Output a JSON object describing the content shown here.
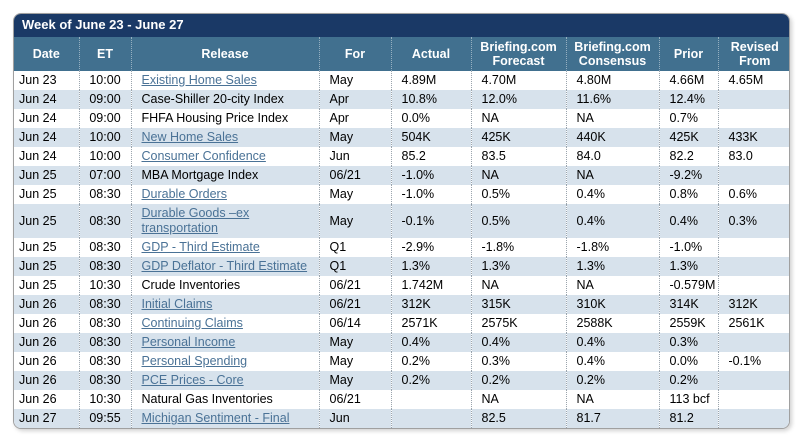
{
  "widget": {
    "title": "Week of June 23 - June 27",
    "colors": {
      "title_bar_bg": "#1a3966",
      "header_bg": "#41708f",
      "alt_row_bg": "#d7e2ec",
      "link_color": "#4a7296"
    }
  },
  "table": {
    "columns": [
      "Date",
      "ET",
      "Release",
      "For",
      "Actual",
      "Briefing.com Forecast",
      "Briefing.com Consensus",
      "Prior",
      "Revised From"
    ],
    "rows": [
      {
        "date": "Jun 23",
        "et": "10:00",
        "release": "Existing Home Sales",
        "link": true,
        "for": "May",
        "actual": "4.89M",
        "forecast": "4.70M",
        "consensus": "4.80M",
        "prior": "4.66M",
        "revised": "4.65M"
      },
      {
        "date": "Jun 24",
        "et": "09:00",
        "release": "Case-Shiller 20-city Index",
        "link": false,
        "for": "Apr",
        "actual": "10.8%",
        "forecast": "12.0%",
        "consensus": "11.6%",
        "prior": "12.4%",
        "revised": ""
      },
      {
        "date": "Jun 24",
        "et": "09:00",
        "release": "FHFA Housing Price Index",
        "link": false,
        "for": "Apr",
        "actual": "0.0%",
        "forecast": "NA",
        "consensus": "NA",
        "prior": "0.7%",
        "revised": ""
      },
      {
        "date": "Jun 24",
        "et": "10:00",
        "release": "New Home Sales",
        "link": true,
        "for": "May",
        "actual": "504K",
        "forecast": "425K",
        "consensus": "440K",
        "prior": "425K",
        "revised": "433K"
      },
      {
        "date": "Jun 24",
        "et": "10:00",
        "release": "Consumer Confidence",
        "link": true,
        "for": "Jun",
        "actual": "85.2",
        "forecast": "83.5",
        "consensus": "84.0",
        "prior": "82.2",
        "revised": "83.0"
      },
      {
        "date": "Jun 25",
        "et": "07:00",
        "release": "MBA Mortgage Index",
        "link": false,
        "for": "06/21",
        "actual": "-1.0%",
        "forecast": "NA",
        "consensus": "NA",
        "prior": "-9.2%",
        "revised": ""
      },
      {
        "date": "Jun 25",
        "et": "08:30",
        "release": "Durable Orders",
        "link": true,
        "for": "May",
        "actual": "-1.0%",
        "forecast": "0.5%",
        "consensus": "0.4%",
        "prior": "0.8%",
        "revised": "0.6%"
      },
      {
        "date": "Jun 25",
        "et": "08:30",
        "release": "Durable Goods –ex transportation",
        "link": true,
        "for": "May",
        "actual": "-0.1%",
        "forecast": "0.5%",
        "consensus": "0.4%",
        "prior": "0.4%",
        "revised": "0.3%"
      },
      {
        "date": "Jun 25",
        "et": "08:30",
        "release": "GDP - Third Estimate",
        "link": true,
        "for": "Q1",
        "actual": "-2.9%",
        "forecast": "-1.8%",
        "consensus": "-1.8%",
        "prior": "-1.0%",
        "revised": ""
      },
      {
        "date": "Jun 25",
        "et": "08:30",
        "release": "GDP Deflator - Third Estimate",
        "link": true,
        "for": "Q1",
        "actual": "1.3%",
        "forecast": "1.3%",
        "consensus": "1.3%",
        "prior": "1.3%",
        "revised": ""
      },
      {
        "date": "Jun 25",
        "et": "10:30",
        "release": "Crude Inventories",
        "link": false,
        "for": "06/21",
        "actual": "1.742M",
        "forecast": "NA",
        "consensus": "NA",
        "prior": "-0.579M",
        "revised": ""
      },
      {
        "date": "Jun 26",
        "et": "08:30",
        "release": "Initial Claims",
        "link": true,
        "for": "06/21",
        "actual": "312K",
        "forecast": "315K",
        "consensus": "310K",
        "prior": "314K",
        "revised": "312K"
      },
      {
        "date": "Jun 26",
        "et": "08:30",
        "release": "Continuing Claims",
        "link": true,
        "for": "06/14",
        "actual": "2571K",
        "forecast": "2575K",
        "consensus": "2588K",
        "prior": "2559K",
        "revised": "2561K"
      },
      {
        "date": "Jun 26",
        "et": "08:30",
        "release": "Personal Income",
        "link": true,
        "for": "May",
        "actual": "0.4%",
        "forecast": "0.4%",
        "consensus": "0.4%",
        "prior": "0.3%",
        "revised": ""
      },
      {
        "date": "Jun 26",
        "et": "08:30",
        "release": "Personal Spending",
        "link": true,
        "for": "May",
        "actual": "0.2%",
        "forecast": "0.3%",
        "consensus": "0.4%",
        "prior": "0.0%",
        "revised": "-0.1%"
      },
      {
        "date": "Jun 26",
        "et": "08:30",
        "release": "PCE Prices - Core",
        "link": true,
        "for": "May",
        "actual": "0.2%",
        "forecast": "0.2%",
        "consensus": "0.2%",
        "prior": "0.2%",
        "revised": ""
      },
      {
        "date": "Jun 26",
        "et": "10:30",
        "release": "Natural Gas Inventories",
        "link": false,
        "for": "06/21",
        "actual": "",
        "forecast": "NA",
        "consensus": "NA",
        "prior": "113 bcf",
        "revised": ""
      },
      {
        "date": "Jun 27",
        "et": "09:55",
        "release": "Michigan Sentiment - Final",
        "link": true,
        "for": "Jun",
        "actual": "",
        "forecast": "82.5",
        "consensus": "81.7",
        "prior": "81.2",
        "revised": ""
      }
    ]
  }
}
